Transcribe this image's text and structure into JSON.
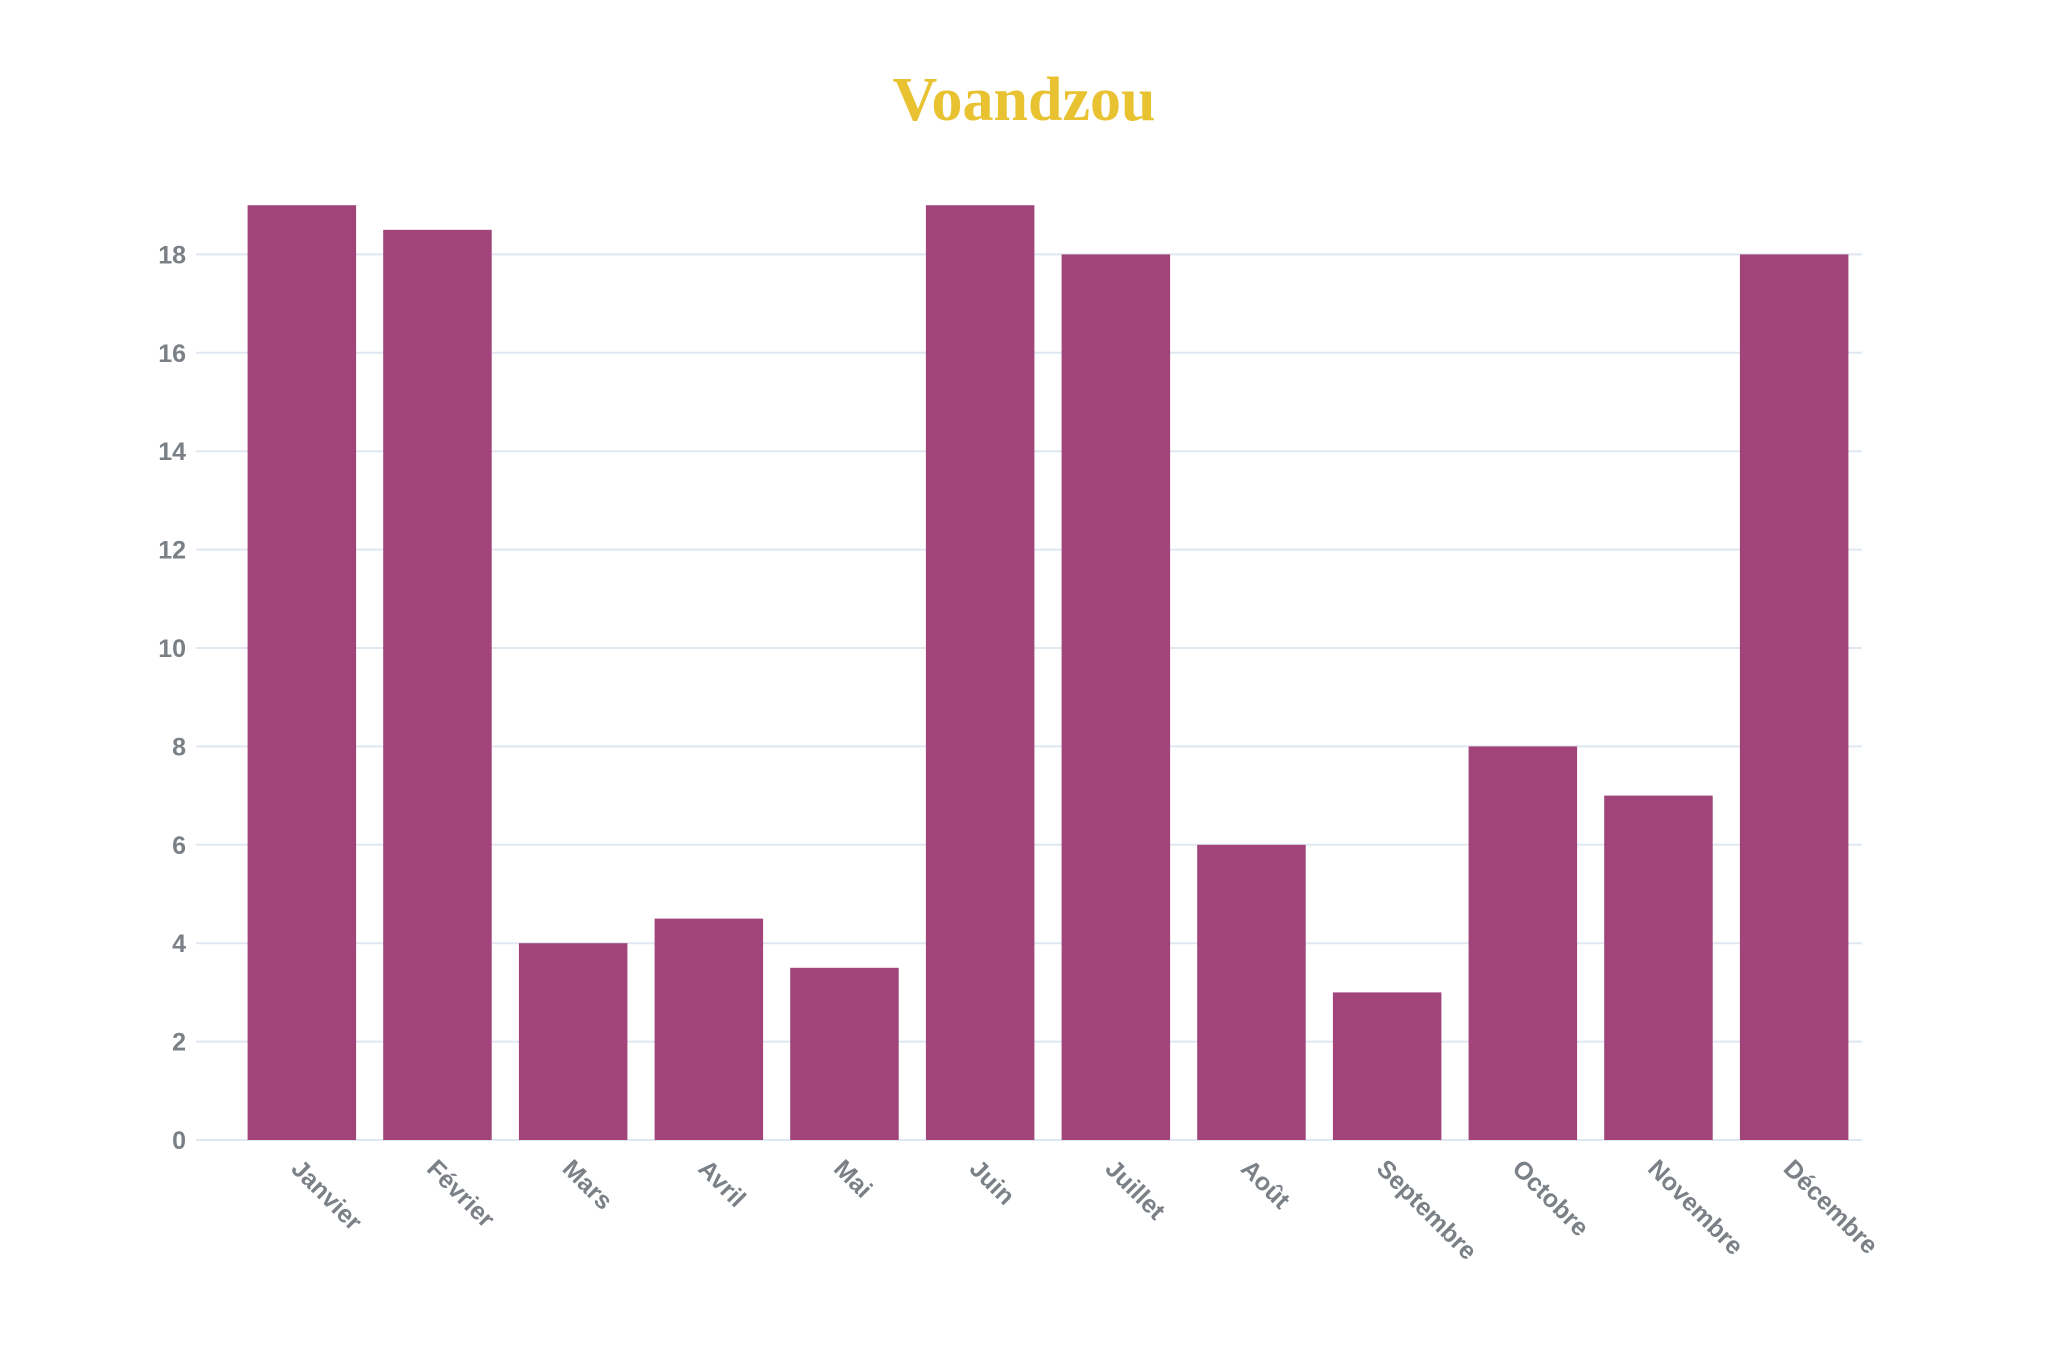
{
  "chart_data": {
    "type": "bar",
    "title": "Voandzou",
    "categories": [
      "Janvier",
      "Février",
      "Mars",
      "Avril",
      "Mai",
      "Juin",
      "Juillet",
      "Août",
      "Septembre",
      "Octobre",
      "Novembre",
      "Décembre"
    ],
    "values": [
      19,
      18.5,
      4,
      4.5,
      3.5,
      19,
      18,
      6,
      3,
      8,
      7,
      18
    ],
    "yticks": [
      "0",
      "2",
      "4",
      "6",
      "8",
      "10",
      "12",
      "14",
      "16",
      "18"
    ],
    "ylim": [
      0,
      19
    ],
    "xlabel": "",
    "ylabel": "",
    "grid": true,
    "legend": "none",
    "bar_color": "#a0447a",
    "title_color": "#e8c230",
    "grid_color": "#dfe8f1",
    "tick_color": "#7b8087"
  }
}
